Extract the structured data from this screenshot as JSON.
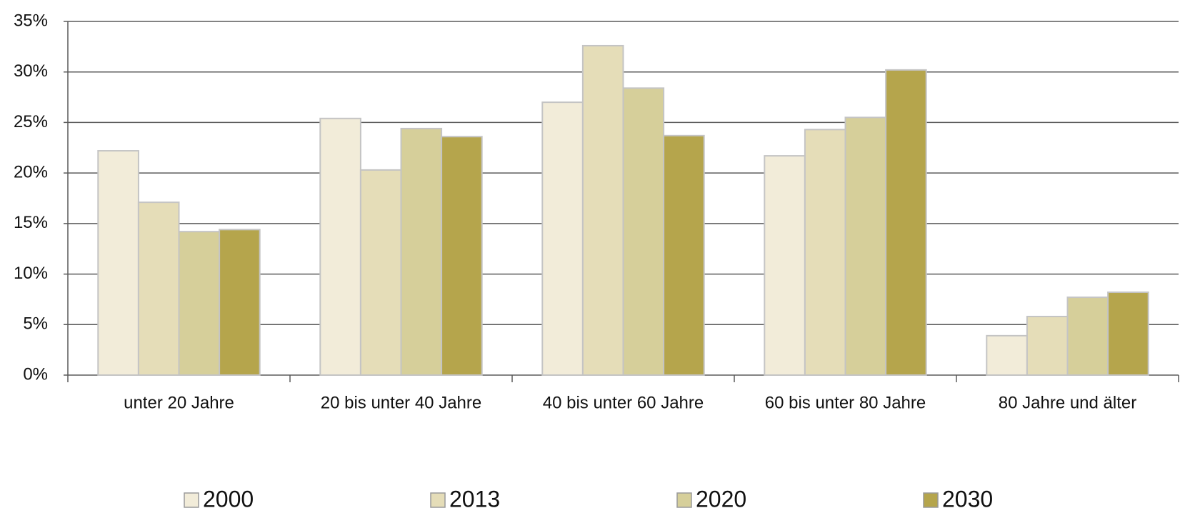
{
  "chart_data": {
    "type": "bar",
    "categories": [
      "unter 20 Jahre",
      "20 bis unter 40 Jahre",
      "40 bis unter 60 Jahre",
      "60 bis unter 80 Jahre",
      "80 Jahre und älter"
    ],
    "series": [
      {
        "name": "2000",
        "color": "#f2ecd9",
        "values": [
          22.2,
          25.4,
          27.0,
          21.7,
          3.9
        ]
      },
      {
        "name": "2013",
        "color": "#e5ddb8",
        "values": [
          17.1,
          20.3,
          32.6,
          24.3,
          5.8
        ]
      },
      {
        "name": "2020",
        "color": "#d6cf9a",
        "values": [
          14.2,
          24.4,
          28.4,
          25.5,
          7.7
        ]
      },
      {
        "name": "2030",
        "color": "#b5a54c",
        "values": [
          14.4,
          23.6,
          23.7,
          30.2,
          8.2
        ]
      }
    ],
    "ylim": [
      0,
      35
    ],
    "yticks": [
      {
        "value": 0,
        "label": "0%"
      },
      {
        "value": 5,
        "label": "5%"
      },
      {
        "value": 10,
        "label": "10%"
      },
      {
        "value": 15,
        "label": "15%"
      },
      {
        "value": 20,
        "label": "20%"
      },
      {
        "value": 25,
        "label": "25%"
      },
      {
        "value": 30,
        "label": "30%"
      },
      {
        "value": 35,
        "label": "35%"
      }
    ],
    "grid": true,
    "legend": "bottom"
  }
}
